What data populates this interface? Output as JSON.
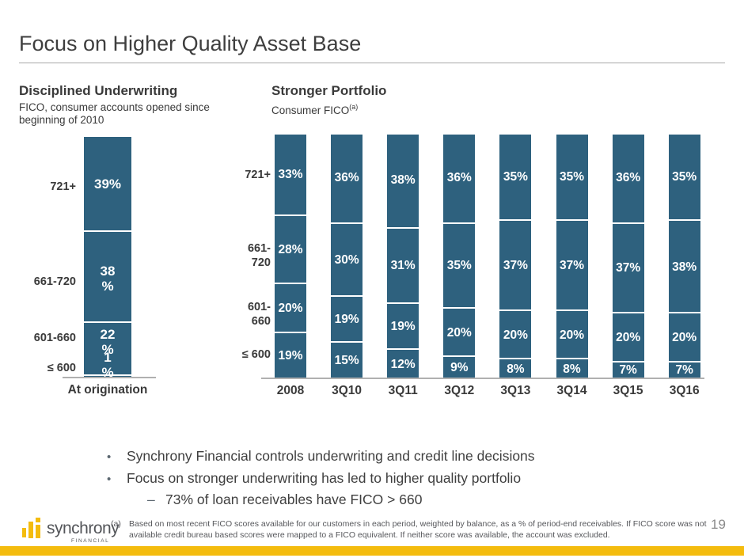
{
  "title": "Focus on Higher Quality Asset Base",
  "page_number": "19",
  "colors": {
    "bar_teal": "#2E617E",
    "gold": "#F4BC0E",
    "axis_gray": "#b0b0b0"
  },
  "left_panel": {
    "heading": "Disciplined Underwriting",
    "subheading": "FICO, consumer accounts opened since beginning of 2010"
  },
  "right_panel": {
    "heading": "Stronger Portfolio",
    "subheading": "Consumer FICO",
    "footnote_ref": "(a)"
  },
  "bullets": {
    "bullet_char": "•",
    "dash_char": "–",
    "items": [
      "Synchrony Financial controls underwriting and credit line decisions",
      "Focus on stronger underwriting has led to higher quality portfolio"
    ],
    "sub_item": "73% of loan receivables have FICO > 660"
  },
  "footnote": {
    "marker": "(a)",
    "lines": [
      "Based on most recent FICO scores available for our customers in each period, weighted by balance, as a % of period-end receivables. If FICO score was not",
      "available credit bureau based scores were mapped to a FICO equivalent. If neither score was available, the account was excluded."
    ]
  },
  "logo": {
    "word": "synchrony",
    "sub": "FINANCIAL"
  },
  "chart_data": [
    {
      "type": "bar",
      "stacked": true,
      "title": "Disciplined Underwriting",
      "subtitle": "FICO, consumer accounts opened since beginning of 2010",
      "categories": [
        "At origination"
      ],
      "row_labels": [
        "721+",
        "661-720",
        "601-660",
        "≤ 600"
      ],
      "series_order": "top-to-bottom",
      "series": [
        {
          "name": "721+",
          "values": [
            39
          ]
        },
        {
          "name": "661-720",
          "values": [
            38
          ]
        },
        {
          "name": "601-660",
          "values": [
            22
          ]
        },
        {
          "name": "≤ 600",
          "values": [
            1
          ]
        }
      ],
      "segment_label_lines": [
        [
          "39%"
        ],
        [
          "38",
          "%"
        ],
        [
          "22",
          "%"
        ],
        [
          "1",
          "%"
        ]
      ],
      "unit": "%",
      "ylim": [
        0,
        100
      ],
      "bar_color": "#2E617E",
      "legend": "none",
      "grid": false
    },
    {
      "type": "bar",
      "stacked": true,
      "title": "Stronger Portfolio",
      "subtitle": "Consumer FICO (a)",
      "categories": [
        "2008",
        "3Q10",
        "3Q11",
        "3Q12",
        "3Q13",
        "3Q14",
        "3Q15",
        "3Q16"
      ],
      "row_labels": [
        "721+",
        "661-720",
        "601-660",
        "≤ 600"
      ],
      "series_order": "top-to-bottom",
      "series": [
        {
          "name": "721+",
          "values": [
            33,
            36,
            38,
            36,
            35,
            35,
            36,
            35
          ]
        },
        {
          "name": "661-720",
          "values": [
            28,
            30,
            31,
            35,
            37,
            37,
            37,
            38
          ]
        },
        {
          "name": "601-660",
          "values": [
            20,
            19,
            19,
            20,
            20,
            20,
            20,
            20
          ]
        },
        {
          "name": "≤ 600",
          "values": [
            19,
            15,
            12,
            9,
            8,
            8,
            7,
            7
          ]
        }
      ],
      "unit": "%",
      "ylim": [
        0,
        100
      ],
      "bar_color": "#2E617E",
      "legend": "none",
      "grid": false
    }
  ]
}
